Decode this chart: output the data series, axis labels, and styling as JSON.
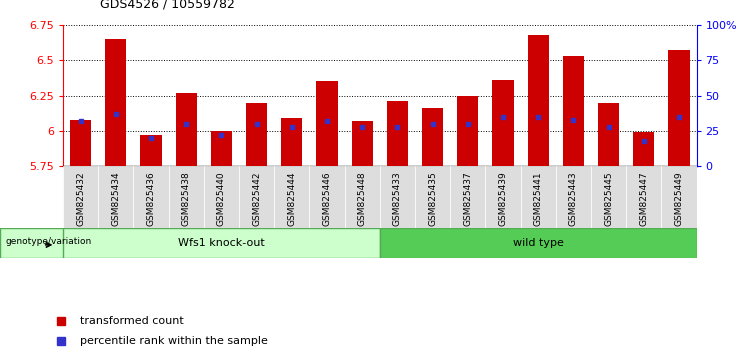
{
  "title": "GDS4526 / 10559782",
  "samples": [
    "GSM825432",
    "GSM825434",
    "GSM825436",
    "GSM825438",
    "GSM825440",
    "GSM825442",
    "GSM825444",
    "GSM825446",
    "GSM825448",
    "GSM825433",
    "GSM825435",
    "GSM825437",
    "GSM825439",
    "GSM825441",
    "GSM825443",
    "GSM825445",
    "GSM825447",
    "GSM825449"
  ],
  "transformed_count": [
    6.08,
    6.65,
    5.97,
    6.27,
    6.0,
    6.2,
    6.09,
    6.35,
    6.07,
    6.21,
    6.16,
    6.25,
    6.36,
    6.68,
    6.53,
    6.2,
    5.99,
    6.57
  ],
  "percentile_rank": [
    32,
    37,
    20,
    30,
    22,
    30,
    28,
    32,
    28,
    28,
    30,
    30,
    35,
    35,
    33,
    28,
    18,
    35
  ],
  "group1_label": "Wfs1 knock-out",
  "group2_label": "wild type",
  "group1_count": 9,
  "group2_count": 9,
  "ymin": 5.75,
  "ymax": 6.75,
  "yticks": [
    5.75,
    6.0,
    6.25,
    6.5,
    6.75
  ],
  "ytick_labels": [
    "5.75",
    "6",
    "6.25",
    "6.5",
    "6.75"
  ],
  "right_yticks": [
    0,
    25,
    50,
    75,
    100
  ],
  "right_yticklabels": [
    "0",
    "25",
    "50",
    "75",
    "100%"
  ],
  "bar_color": "#CC0000",
  "dot_color": "#3333CC",
  "group1_bg": "#CCFFCC",
  "group2_bg": "#55CC55",
  "label_bg": "#CCFFCC",
  "tick_bg": "#DDDDDD",
  "legend_red_label": "transformed count",
  "legend_blue_label": "percentile rank within the sample",
  "genotype_label": "genotype/variation"
}
